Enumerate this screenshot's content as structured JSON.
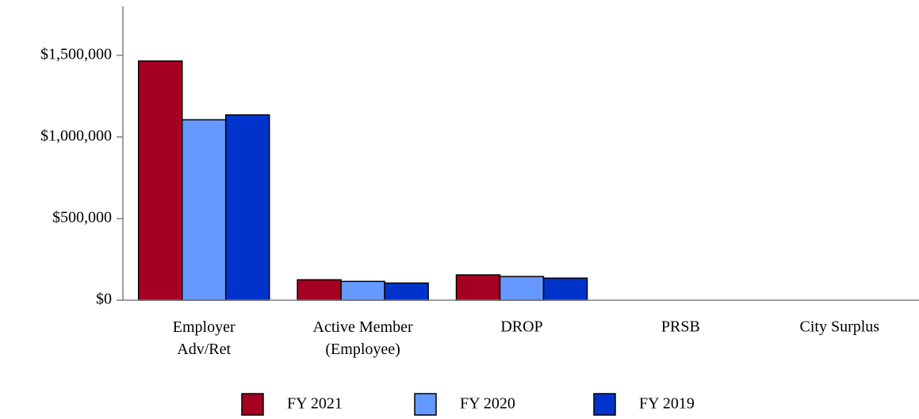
{
  "chart_data": {
    "type": "bar",
    "categories": [
      "Employer\nAdv/Ret",
      "Active Member\n(Employee)",
      "DROP",
      "PRSB",
      "City Surplus"
    ],
    "series": [
      {
        "name": "FY 2021",
        "color": "#a50021",
        "values": [
          1465000,
          125000,
          155000,
          0,
          0
        ]
      },
      {
        "name": "FY 2020",
        "color": "#6699ff",
        "values": [
          1105000,
          115000,
          145000,
          0,
          0
        ]
      },
      {
        "name": "FY 2019",
        "color": "#0033cc",
        "values": [
          1135000,
          105000,
          135000,
          0,
          0
        ]
      }
    ],
    "ylim": [
      0,
      1800000
    ],
    "yticks": [
      {
        "value": 0,
        "label": "$0"
      },
      {
        "value": 500000,
        "label": "$500,000"
      },
      {
        "value": 1000000,
        "label": "$1,000,000"
      },
      {
        "value": 1500000,
        "label": "$1,500,000"
      }
    ],
    "legend": "bottom"
  }
}
